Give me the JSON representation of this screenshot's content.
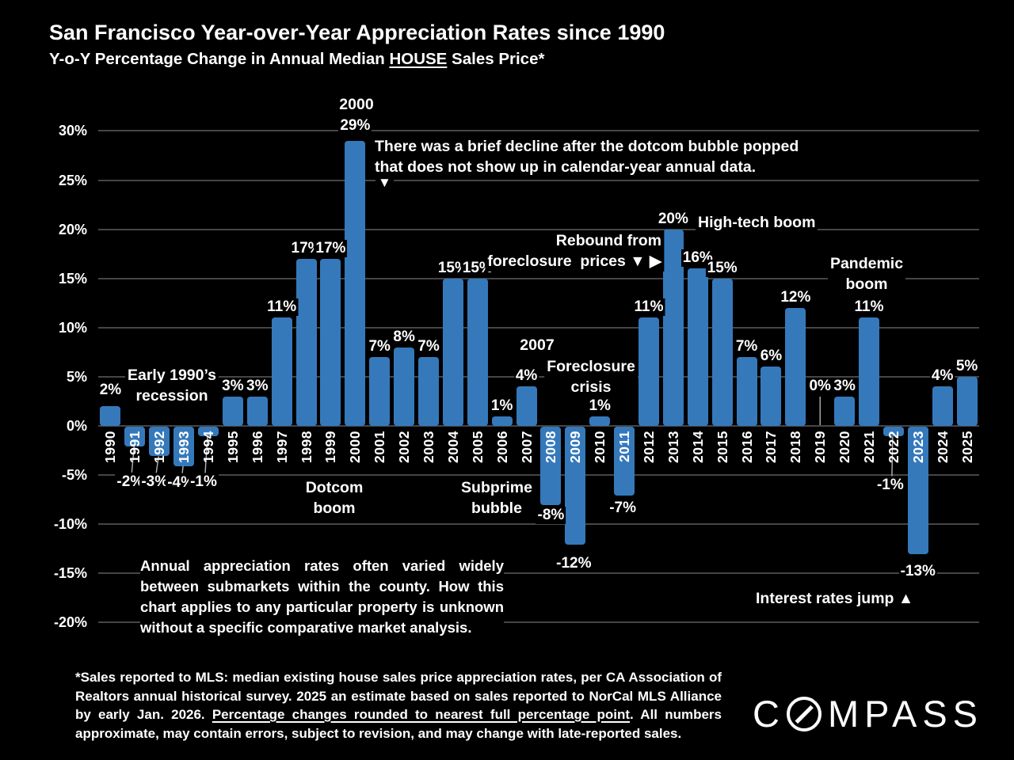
{
  "header": {
    "title": "San Francisco Year-over-Year Appreciation Rates since 1990",
    "subtitle_prefix": "Y-o-Y Percentage Change in Annual Median ",
    "subtitle_underlined": "HOUSE",
    "subtitle_suffix": " Sales Price*"
  },
  "chart_data": {
    "type": "bar",
    "title": "San Francisco Year-over-Year Appreciation Rates since 1990",
    "subtitle": "Y-o-Y Percentage Change in Annual Median HOUSE Sales Price*",
    "categories": [
      "1990",
      "1991",
      "1992",
      "1993",
      "1994",
      "1995",
      "1996",
      "1997",
      "1998",
      "1999",
      "2000",
      "2001",
      "2002",
      "2003",
      "2004",
      "2005",
      "2006",
      "2007",
      "2008",
      "2009",
      "2010",
      "2011",
      "2012",
      "2013",
      "2014",
      "2015",
      "2016",
      "2017",
      "2018",
      "2019",
      "2020",
      "2021",
      "2022",
      "2023",
      "2024",
      "2025"
    ],
    "values": [
      2,
      -2,
      -3,
      -4,
      -1,
      3,
      3,
      11,
      17,
      17,
      29,
      7,
      8,
      7,
      15,
      15,
      1,
      4,
      -8,
      -12,
      1,
      -7,
      11,
      20,
      16,
      15,
      7,
      6,
      12,
      0,
      3,
      11,
      -1,
      -13,
      4,
      5
    ],
    "bar_labels": [
      "2%",
      "-2%",
      "-3%",
      "-4%",
      "-1%",
      "3%",
      "3%",
      "11%",
      "17%",
      "17%",
      "29%",
      "7%",
      "8%",
      "7%",
      "15%",
      "15%",
      "1%",
      "4%",
      "-8%",
      "-12%",
      "1%",
      "-7%",
      "11%",
      "20%",
      "16%",
      "15%",
      "7%",
      "6%",
      "12%",
      "0%",
      "3%",
      "11%",
      "-1%",
      "-13%",
      "4%",
      "5%"
    ],
    "xlabel": "",
    "ylabel": "",
    "ylim": [
      -20,
      30
    ],
    "yticks": [
      {
        "value": 30,
        "label": "30%"
      },
      {
        "value": 25,
        "label": "25%"
      },
      {
        "value": 20,
        "label": "20%"
      },
      {
        "value": 15,
        "label": "15%"
      },
      {
        "value": 10,
        "label": "10%"
      },
      {
        "value": 5,
        "label": "5%"
      },
      {
        "value": 0,
        "label": "0%"
      },
      {
        "value": -5,
        "label": "-5%"
      },
      {
        "value": -10,
        "label": "-10%"
      },
      {
        "value": -15,
        "label": "-15%"
      },
      {
        "value": -20,
        "label": "-20%"
      }
    ],
    "grid": true,
    "legend": "none",
    "bar_color": "#3579BB",
    "gridline_color": "#464646",
    "leader_line_color": "#b3b3b3"
  },
  "annotations": {
    "year_2000": "2000",
    "dotcom_note": "There was a brief decline after the dotcom bubble popped\nthat does not show up in calendar-year annual data.",
    "dotcom_note_arrow": "▼",
    "early_recession": "Early 1990’s\nrecession",
    "dotcom_boom": "Dotcom\nboom",
    "subprime_bubble": "Subprime\nbubble",
    "rebound": "Rebound from\nforeclosure  prices ▼ ▶",
    "high_tech_boom": "High-tech boom",
    "year_2007": "2007",
    "foreclosure_crisis": "Foreclosure\ncrisis",
    "pandemic_boom": "Pandemic\nboom",
    "interest_rates": "Interest rates jump ▲"
  },
  "notes": {
    "disclaimer": "Annual appreciation rates often varied widely between submarkets within the county. How this chart applies to any particular property is unknown without a specific comparative market analysis.",
    "footnote_prefix": "*Sales reported to MLS: median existing house sales price appreciation rates, per CA Association of Realtors annual historical survey. 2025 an estimate based on sales reported to NorCal MLS Alliance by early Jan. 2026. ",
    "footnote_underlined": "Percentage changes rounded to nearest full percentage point",
    "footnote_suffix": ". All numbers approximate, may contain errors, subject to revision, and may change with late-reported sales."
  },
  "logo": {
    "name": "COMPASS",
    "c": "C",
    "rest": "MPASS"
  }
}
